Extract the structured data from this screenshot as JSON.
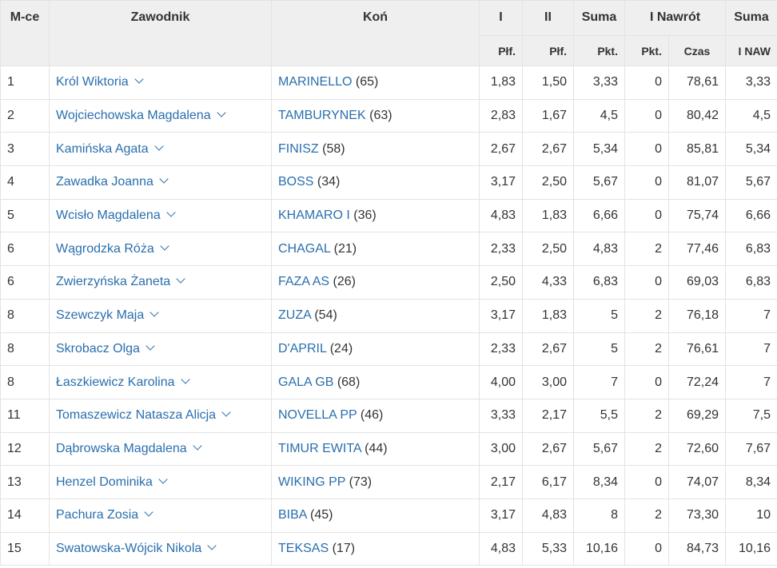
{
  "header": {
    "place": "M-ce",
    "rider": "Zawodnik",
    "horse": "Koń",
    "round1": "I",
    "round2": "II",
    "sum": "Suma",
    "jumpoff": "I Nawrót",
    "sum_jo": "Suma",
    "sub": {
      "r1": "Płf.",
      "r2": "Płf.",
      "sum": "Pkt.",
      "jo_pts": "Pkt.",
      "jo_time": "Czas",
      "sum_jo": "I NAW"
    }
  },
  "rows": [
    {
      "place": "1",
      "rider": "Król Wiktoria",
      "horse": "MARINELLO",
      "horse_no": "(65)",
      "r1": "1,83",
      "r2": "1,50",
      "sum": "3,33",
      "jo_pts": "0",
      "jo_time": "78,61",
      "total": "3,33"
    },
    {
      "place": "2",
      "rider": "Wojciechowska Magdalena",
      "horse": "TAMBURYNEK",
      "horse_no": "(63)",
      "r1": "2,83",
      "r2": "1,67",
      "sum": "4,5",
      "jo_pts": "0",
      "jo_time": "80,42",
      "total": "4,5"
    },
    {
      "place": "3",
      "rider": "Kamińska Agata",
      "horse": "FINISZ",
      "horse_no": "(58)",
      "r1": "2,67",
      "r2": "2,67",
      "sum": "5,34",
      "jo_pts": "0",
      "jo_time": "85,81",
      "total": "5,34"
    },
    {
      "place": "4",
      "rider": "Zawadka Joanna",
      "horse": "BOSS",
      "horse_no": "(34)",
      "r1": "3,17",
      "r2": "2,50",
      "sum": "5,67",
      "jo_pts": "0",
      "jo_time": "81,07",
      "total": "5,67"
    },
    {
      "place": "5",
      "rider": "Wcisło Magdalena",
      "horse": "KHAMARO I",
      "horse_no": "(36)",
      "r1": "4,83",
      "r2": "1,83",
      "sum": "6,66",
      "jo_pts": "0",
      "jo_time": "75,74",
      "total": "6,66"
    },
    {
      "place": "6",
      "rider": "Wągrodzka Róża",
      "horse": "CHAGAL",
      "horse_no": "(21)",
      "r1": "2,33",
      "r2": "2,50",
      "sum": "4,83",
      "jo_pts": "2",
      "jo_time": "77,46",
      "total": "6,83"
    },
    {
      "place": "6",
      "rider": "Zwierzyńska Żaneta",
      "horse": "FAZA AS",
      "horse_no": "(26)",
      "r1": "2,50",
      "r2": "4,33",
      "sum": "6,83",
      "jo_pts": "0",
      "jo_time": "69,03",
      "total": "6,83"
    },
    {
      "place": "8",
      "rider": "Szewczyk Maja",
      "horse": "ZUZA",
      "horse_no": "(54)",
      "r1": "3,17",
      "r2": "1,83",
      "sum": "5",
      "jo_pts": "2",
      "jo_time": "76,18",
      "total": "7"
    },
    {
      "place": "8",
      "rider": "Skrobacz Olga",
      "horse": "D'APRIL",
      "horse_no": "(24)",
      "r1": "2,33",
      "r2": "2,67",
      "sum": "5",
      "jo_pts": "2",
      "jo_time": "76,61",
      "total": "7"
    },
    {
      "place": "8",
      "rider": "Łaszkiewicz Karolina",
      "horse": "GALA GB",
      "horse_no": "(68)",
      "r1": "4,00",
      "r2": "3,00",
      "sum": "7",
      "jo_pts": "0",
      "jo_time": "72,24",
      "total": "7"
    },
    {
      "place": "11",
      "rider": "Tomaszewicz Natasza Alicja",
      "horse": "NOVELLA PP",
      "horse_no": "(46)",
      "r1": "3,33",
      "r2": "2,17",
      "sum": "5,5",
      "jo_pts": "2",
      "jo_time": "69,29",
      "total": "7,5"
    },
    {
      "place": "12",
      "rider": "Dąbrowska Magdalena",
      "horse": "TIMUR EWITA",
      "horse_no": "(44)",
      "r1": "3,00",
      "r2": "2,67",
      "sum": "5,67",
      "jo_pts": "2",
      "jo_time": "72,60",
      "total": "7,67"
    },
    {
      "place": "13",
      "rider": "Henzel Dominika",
      "horse": "WIKING PP",
      "horse_no": "(73)",
      "r1": "2,17",
      "r2": "6,17",
      "sum": "8,34",
      "jo_pts": "0",
      "jo_time": "74,07",
      "total": "8,34"
    },
    {
      "place": "14",
      "rider": "Pachura Zosia",
      "horse": "BIBA",
      "horse_no": "(45)",
      "r1": "3,17",
      "r2": "4,83",
      "sum": "8",
      "jo_pts": "2",
      "jo_time": "73,30",
      "total": "10"
    },
    {
      "place": "15",
      "rider": "Swatowska-Wójcik Nikola",
      "horse": "TEKSAS",
      "horse_no": "(17)",
      "r1": "4,83",
      "r2": "5,33",
      "sum": "10,16",
      "jo_pts": "0",
      "jo_time": "84,73",
      "total": "10,16"
    }
  ],
  "icons": {
    "expand": "chevron-down-icon"
  },
  "colors": {
    "link": "#2a6fad",
    "header_bg": "#efefef",
    "border": "#e3e3e3"
  }
}
